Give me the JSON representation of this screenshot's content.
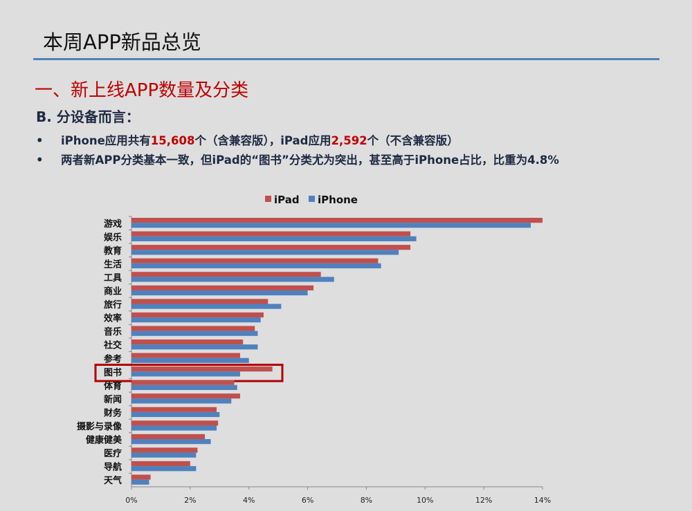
{
  "header": {
    "title": "本周APP新品总览",
    "section": "一、新上线APP数量及分类",
    "subtitle": "B. 分设备而言："
  },
  "bullets": [
    {
      "dot": "•",
      "p1": "iPhone应用共有",
      "n1": "15,608",
      "p2": "个（含兼容版），iPad应用",
      "n2": "2,592",
      "p3": "个（不含兼容版）"
    },
    {
      "dot": "•",
      "text": "两者新APP分类基本一致，但iPad的“图书”分类尤为突出，甚至高于iPhone占比，比重为4.8%"
    }
  ],
  "colors": {
    "ipad": "#c0504d",
    "iphone": "#4f81bd",
    "highlight": "#b00000",
    "accent": "#c00000"
  },
  "chart_data": {
    "type": "bar",
    "orientation": "horizontal",
    "title": "",
    "xlabel": "",
    "ylabel": "",
    "xlim": [
      0,
      14
    ],
    "x_ticks": [
      "0%",
      "2%",
      "4%",
      "6%",
      "8%",
      "10%",
      "12%",
      "14%"
    ],
    "legend_position": "top",
    "categories": [
      "游戏",
      "娱乐",
      "教育",
      "生活",
      "工具",
      "商业",
      "旅行",
      "效率",
      "音乐",
      "社交",
      "参考",
      "图书",
      "体育",
      "新闻",
      "财务",
      "摄影与录像",
      "健康健美",
      "医疗",
      "导航",
      "天气"
    ],
    "series": [
      {
        "name": "iPad",
        "values": [
          14.0,
          9.5,
          9.5,
          8.4,
          6.45,
          6.2,
          4.65,
          4.5,
          4.2,
          3.8,
          3.7,
          4.8,
          3.5,
          3.7,
          2.9,
          2.95,
          2.5,
          2.25,
          2.0,
          0.65
        ]
      },
      {
        "name": "iPhone",
        "values": [
          13.6,
          9.7,
          9.1,
          8.5,
          6.9,
          6.0,
          5.1,
          4.4,
          4.3,
          4.3,
          4.0,
          3.7,
          3.6,
          3.4,
          3.0,
          2.9,
          2.7,
          2.2,
          2.2,
          0.6
        ]
      }
    ],
    "highlighted_category": "图书"
  }
}
